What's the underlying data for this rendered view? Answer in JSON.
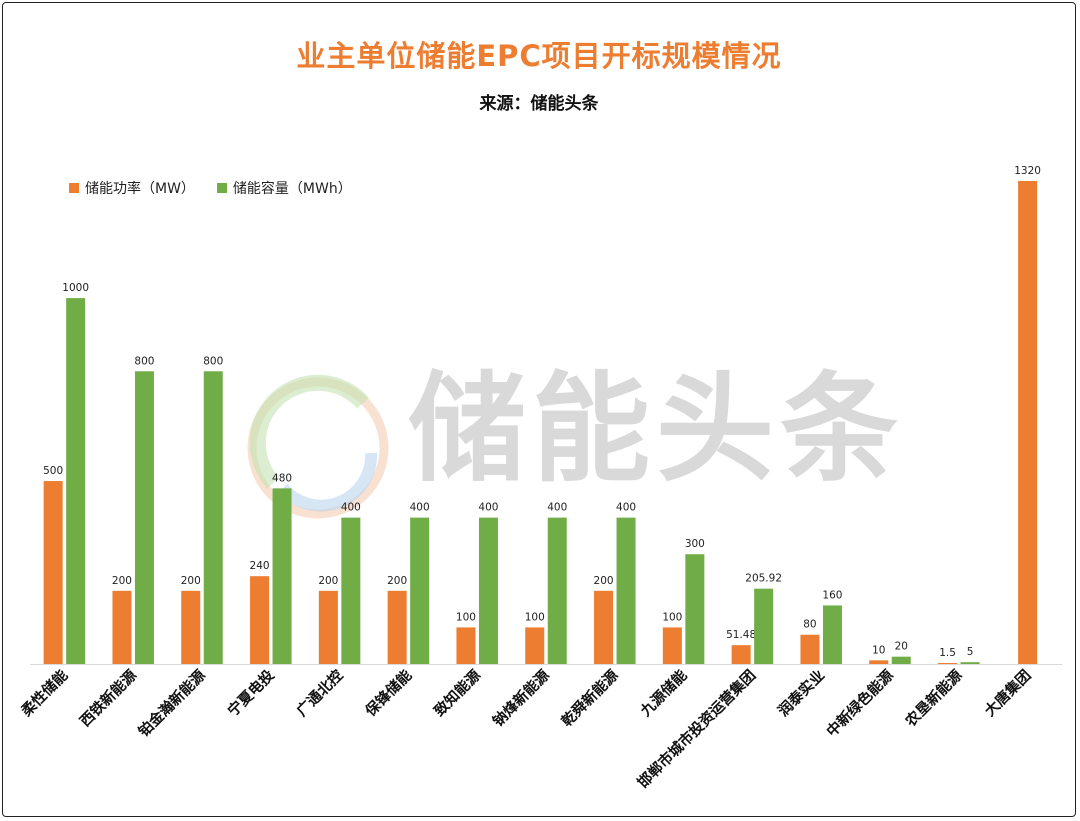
{
  "chart_data": {
    "type": "bar",
    "title": "业主单位储能EPC项目开标规模情况",
    "subtitle": "来源：储能头条",
    "categories": [
      "柔性储能",
      "西铁新能源",
      "铂金瀚新能源",
      "宁夏电投",
      "广通北控",
      "保锋储能",
      "致知能源",
      "钠烽新能源",
      "乾舜新能源",
      "九源储能",
      "邯郸市城市投资运营集团",
      "润泰实业",
      "中新绿色能源",
      "农垦新能源",
      "大唐集团"
    ],
    "series": [
      {
        "name": "储能功率（MW）",
        "color": "#ED7D31",
        "values": [
          500,
          200,
          200,
          240,
          200,
          200,
          100,
          100,
          200,
          100,
          51.48,
          80,
          10,
          1.5,
          1320
        ],
        "labels": [
          "500",
          "200",
          "200",
          "240",
          "200",
          "200",
          "100",
          "100",
          "200",
          "100",
          "51.48",
          "80",
          "10",
          "1.5",
          "1320"
        ]
      },
      {
        "name": "储能容量（MWh）",
        "color": "#70AD47",
        "values": [
          1000,
          800,
          800,
          480,
          400,
          400,
          400,
          400,
          400,
          300,
          205.92,
          160,
          20,
          5,
          null
        ],
        "labels": [
          "1000",
          "800",
          "800",
          "480",
          "400",
          "400",
          "400",
          "400",
          "400",
          "300",
          "205.92",
          "160",
          "20",
          "5",
          ""
        ]
      }
    ],
    "ylim": [
      0,
      1320
    ],
    "grid": false,
    "legend": "top-left"
  },
  "watermark": {
    "text": "储能头条"
  },
  "colors": {
    "title": "#ED7D31",
    "axis": "#d9d9d9",
    "watermark": "#d9d9d9"
  }
}
